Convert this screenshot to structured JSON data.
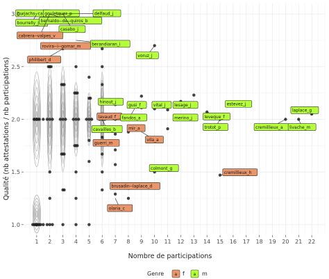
{
  "chart_data": {
    "type": "scatter",
    "xlabel": "Nombre de participations",
    "ylabel": "Qualité (nb attestations / nb participations)",
    "xlim": [
      0,
      23
    ],
    "ylim": [
      0.9,
      3.1
    ],
    "x_ticks": [
      1,
      2,
      3,
      4,
      5,
      6,
      7,
      8,
      9,
      10,
      11,
      12,
      13,
      14,
      15,
      16,
      17,
      18,
      19,
      20,
      21,
      22
    ],
    "y_ticks": [
      1.0,
      1.5,
      2.0,
      2.5,
      3.0
    ],
    "grid": true,
    "contours": [
      {
        "cx": 1,
        "cy": 2.0,
        "rx": 0.3,
        "ry": 0.45
      },
      {
        "cx": 1,
        "cy": 1.1,
        "rx": 0.3,
        "ry": 0.18
      },
      {
        "cx": 2,
        "cy": 2.0,
        "rx": 0.2,
        "ry": 0.5
      },
      {
        "cx": 3,
        "cy": 2.0,
        "rx": 0.2,
        "ry": 0.5
      },
      {
        "cx": 4,
        "cy": 2.0,
        "rx": 0.2,
        "ry": 0.35
      },
      {
        "cx": 5,
        "cy": 2.0,
        "rx": 0.15,
        "ry": 0.25
      },
      {
        "cx": 6,
        "cy": 2.0,
        "rx": 0.12,
        "ry": 0.45
      }
    ],
    "points": [
      [
        1,
        2.0
      ],
      [
        1,
        2.0
      ],
      [
        1,
        2.0
      ],
      [
        1,
        2.0
      ],
      [
        1,
        1.0
      ],
      [
        1,
        1.0
      ],
      [
        1,
        1.0
      ],
      [
        1,
        1.0
      ],
      [
        1,
        1.0
      ],
      [
        0.8,
        2.0
      ],
      [
        1.2,
        2.0
      ],
      [
        0.8,
        1.0
      ],
      [
        1.2,
        1.0
      ],
      [
        0.9,
        1.0
      ],
      [
        1.1,
        1.0
      ],
      [
        0.85,
        2.0
      ],
      [
        1.15,
        2.0
      ],
      [
        0.7,
        1.0
      ],
      [
        1.3,
        1.0
      ],
      [
        1.5,
        1.0
      ],
      [
        1.5,
        2.0
      ],
      [
        2,
        1.0
      ],
      [
        2,
        1.5
      ],
      [
        2,
        2.0
      ],
      [
        2,
        2.5
      ],
      [
        2,
        3.0
      ],
      [
        2,
        1.25
      ],
      [
        1.8,
        2.0
      ],
      [
        2.2,
        2.0
      ],
      [
        1.8,
        1.0
      ],
      [
        2.2,
        1.0
      ],
      [
        1.9,
        2.5
      ],
      [
        2.1,
        2.5
      ],
      [
        3,
        1.0
      ],
      [
        3,
        1.33
      ],
      [
        3,
        1.67
      ],
      [
        3,
        2.0
      ],
      [
        3,
        2.33
      ],
      [
        3,
        2.67
      ],
      [
        2.8,
        2.0
      ],
      [
        3.2,
        2.0
      ],
      [
        2.9,
        2.33
      ],
      [
        3.1,
        2.33
      ],
      [
        2.9,
        1.67
      ],
      [
        3.1,
        1.67
      ],
      [
        3.1,
        1.33
      ],
      [
        4,
        1.0
      ],
      [
        4,
        1.25
      ],
      [
        4,
        1.5
      ],
      [
        4,
        1.75
      ],
      [
        4,
        2.0
      ],
      [
        4,
        2.25
      ],
      [
        4,
        2.5
      ],
      [
        3.8,
        2.0
      ],
      [
        4.2,
        2.0
      ],
      [
        3.9,
        1.75
      ],
      [
        4.1,
        1.75
      ],
      [
        3.9,
        2.25
      ],
      [
        4.1,
        2.25
      ],
      [
        5,
        1.6
      ],
      [
        5,
        1.8
      ],
      [
        5,
        2.0
      ],
      [
        5,
        2.2
      ],
      [
        5,
        2.4
      ],
      [
        5,
        1.0
      ],
      [
        4.8,
        2.0
      ],
      [
        5.2,
        2.0
      ],
      [
        5.1,
        2.2
      ],
      [
        6,
        1.5
      ],
      [
        6,
        1.67
      ],
      [
        6,
        1.83
      ],
      [
        6,
        2.0
      ],
      [
        6,
        2.17
      ],
      [
        6,
        2.33
      ],
      [
        6,
        2.5
      ],
      [
        6,
        2.67
      ],
      [
        6,
        1.33
      ],
      [
        5.8,
        2.0
      ],
      [
        6.2,
        2.0
      ],
      [
        7,
        1.29
      ],
      [
        7,
        1.71
      ],
      [
        7,
        1.86
      ],
      [
        7,
        2.0
      ],
      [
        7,
        2.14
      ],
      [
        7,
        1.57
      ],
      [
        8,
        1.88
      ],
      [
        8,
        2.0
      ],
      [
        8,
        1.25
      ],
      [
        9,
        2.0
      ],
      [
        9,
        2.11
      ],
      [
        9,
        2.22
      ],
      [
        10,
        2.1
      ],
      [
        10,
        2.7
      ],
      [
        10,
        1.5
      ],
      [
        11,
        1.91
      ],
      [
        11,
        2.09
      ],
      [
        12,
        2.0
      ],
      [
        12,
        2.17
      ],
      [
        13,
        2.0
      ],
      [
        13,
        2.23
      ],
      [
        14,
        2.07
      ],
      [
        15,
        2.0
      ],
      [
        15,
        1.47
      ],
      [
        16,
        2.13
      ],
      [
        20,
        2.0
      ],
      [
        21,
        2.0
      ],
      [
        22,
        2.05
      ]
    ],
    "labels": [
      {
        "text": "burjachs--ca",
        "genre": "m",
        "bx": -0.6,
        "by": 3.04,
        "tx": 1.5,
        "ty": 3.0,
        "pw": 49
      },
      {
        "text": "gouletquer_p",
        "genre": "m",
        "bx": 1.5,
        "by": 3.04,
        "tx": 2.0,
        "ty": 3.0,
        "pw": 52
      },
      {
        "text": "delfaud_j",
        "genre": "m",
        "bx": 5.3,
        "by": 3.04,
        "tx": 2.5,
        "ty": 3.0,
        "pw": 40
      },
      {
        "text": "bourrelly_j",
        "genre": "m",
        "bx": -0.6,
        "by": 2.95,
        "tx": 1.0,
        "ty": 3.0,
        "pw": 46
      },
      {
        "text": "bernaldo--de--quiros_b",
        "genre": "m",
        "bx": 1.2,
        "by": 2.97,
        "tx": 2.0,
        "ty": 3.0,
        "pw": 90
      },
      {
        "text": "casabo_j",
        "genre": "m",
        "bx": 2.7,
        "by": 2.89,
        "tx": 3.0,
        "ty": 3.0,
        "pw": 38
      },
      {
        "text": "cabrera--valpes_v",
        "genre": "f",
        "bx": -0.5,
        "by": 2.83,
        "tx": 2.0,
        "ty": 3.0,
        "pw": 66
      },
      {
        "text": "berandiaran_i",
        "genre": "m",
        "bx": 5.1,
        "by": 2.75,
        "tx": 4.0,
        "ty": 2.75,
        "pw": 57
      },
      {
        "text": "rovira--i--gomar_m",
        "genre": "f",
        "bx": 1.3,
        "by": 2.73,
        "tx": 3.0,
        "ty": 2.67,
        "pw": 72
      },
      {
        "text": "voruz_j",
        "genre": "m",
        "bx": 8.6,
        "by": 2.64,
        "tx": 10.0,
        "ty": 2.7,
        "pw": 32
      },
      {
        "text": "philibert_d",
        "genre": "f",
        "bx": 0.3,
        "by": 2.6,
        "tx": 3.0,
        "ty": 2.67,
        "pw": 48
      },
      {
        "text": "hinout_j",
        "genre": "m",
        "bx": 5.7,
        "by": 2.2,
        "tx": 6.0,
        "ty": 2.17,
        "pw": 36
      },
      {
        "text": "gusi_f",
        "genre": "m",
        "bx": 7.9,
        "by": 2.17,
        "tx": 8.0,
        "ty": 2.0,
        "pw": 28
      },
      {
        "text": "vital_j",
        "genre": "m",
        "bx": 9.8,
        "by": 2.17,
        "tx": 10.0,
        "ty": 2.1,
        "pw": 28
      },
      {
        "text": "lesage_j",
        "genre": "m",
        "bx": 11.4,
        "by": 2.17,
        "tx": 12.0,
        "ty": 2.17,
        "pw": 36
      },
      {
        "text": "estevez_j",
        "genre": "m",
        "bx": 15.4,
        "by": 2.18,
        "tx": 16.0,
        "ty": 2.13,
        "pw": 38
      },
      {
        "text": "laplace_g",
        "genre": "m",
        "bx": 20.4,
        "by": 2.12,
        "tx": 22.0,
        "ty": 2.05,
        "pw": 40
      },
      {
        "text": "lavaud_f",
        "genre": "f",
        "bx": 5.6,
        "by": 2.06,
        "tx": 6.0,
        "ty": 2.0,
        "pw": 36
      },
      {
        "text": "fandos_a",
        "genre": "m",
        "bx": 7.4,
        "by": 2.05,
        "tx": 7.0,
        "ty": 2.0,
        "pw": 38
      },
      {
        "text": "merino_j",
        "genre": "m",
        "bx": 11.4,
        "by": 2.05,
        "tx": 12.0,
        "ty": 2.0,
        "pw": 36
      },
      {
        "text": "leveque_f",
        "genre": "m",
        "bx": 13.7,
        "by": 2.06,
        "tx": 14.0,
        "ty": 2.07,
        "pw": 39
      },
      {
        "text": "cavailles_b",
        "genre": "m",
        "bx": 5.2,
        "by": 1.94,
        "tx": 6.0,
        "ty": 2.0,
        "pw": 44
      },
      {
        "text": "mir_a",
        "genre": "f",
        "bx": 7.9,
        "by": 1.95,
        "tx": 8.0,
        "ty": 1.88,
        "pw": 26
      },
      {
        "text": "trotot_p",
        "genre": "m",
        "bx": 13.7,
        "by": 1.96,
        "tx": 15.0,
        "ty": 2.0,
        "pw": 36
      },
      {
        "text": "cremillieux_a",
        "genre": "m",
        "bx": 17.6,
        "by": 1.96,
        "tx": 20.0,
        "ty": 2.0,
        "pw": 50
      },
      {
        "text": "livache_m",
        "genre": "m",
        "bx": 20.2,
        "by": 1.96,
        "tx": 21.0,
        "ty": 2.0,
        "pw": 40
      },
      {
        "text": "vila_a",
        "genre": "f",
        "bx": 9.3,
        "by": 1.84,
        "tx": 9.0,
        "ty": 1.88,
        "pw": 26
      },
      {
        "text": "guerri_m",
        "genre": "f",
        "bx": 5.3,
        "by": 1.81,
        "tx": 6.0,
        "ty": 1.83,
        "pw": 38
      },
      {
        "text": "colmont_g",
        "genre": "m",
        "bx": 9.6,
        "by": 1.57,
        "tx": 10.0,
        "ty": 1.5,
        "pw": 42
      },
      {
        "text": "cremillieux_h",
        "genre": "f",
        "bx": 15.2,
        "by": 1.53,
        "tx": 15.0,
        "ty": 1.47,
        "pw": 50
      },
      {
        "text": "brusadin--laplace_d",
        "genre": "f",
        "bx": 6.6,
        "by": 1.4,
        "tx": 8.0,
        "ty": 1.33,
        "pw": 72
      },
      {
        "text": "olaria_c",
        "genre": "f",
        "bx": 6.4,
        "by": 1.19,
        "tx": 7.0,
        "ty": 1.25,
        "pw": 36
      }
    ]
  },
  "legend": {
    "title": "Genre",
    "items": [
      {
        "key": "a",
        "label": "f",
        "color": "#e8956a"
      },
      {
        "key": "a",
        "label": "m",
        "color": "#b5ff3a"
      }
    ]
  },
  "colors": {
    "f": "#e8956a",
    "m": "#b5ff3a",
    "panel": "#ffffff",
    "grid": "#ebebeb",
    "point": "#222222",
    "contour": "#9a9a9a"
  }
}
